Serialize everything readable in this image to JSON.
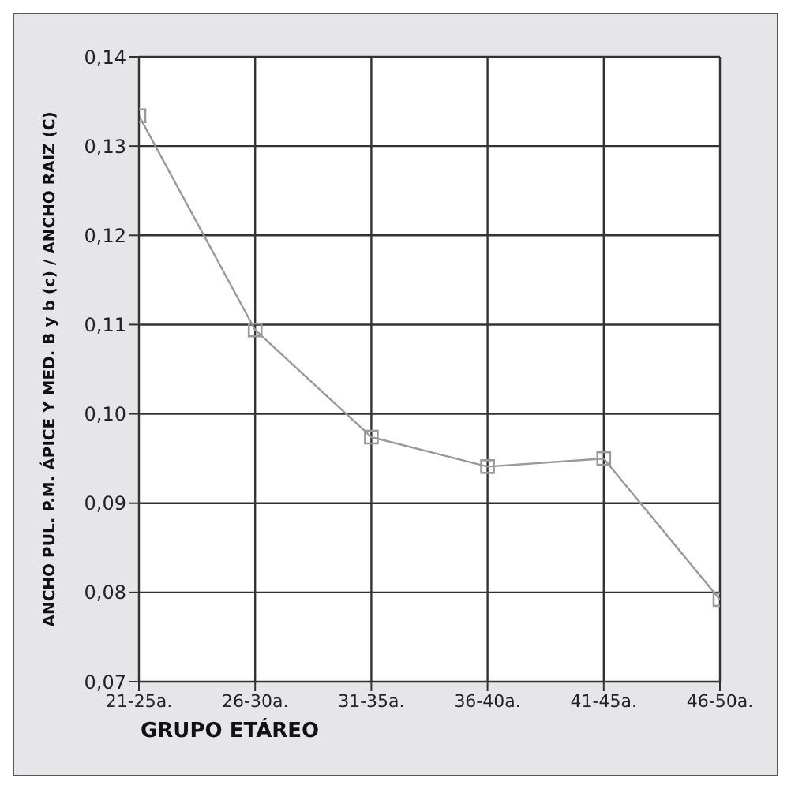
{
  "chart_data": {
    "type": "line",
    "categories": [
      "21-25a.",
      "26-30a.",
      "31-35a.",
      "36-40a.",
      "41-45a.",
      "46-50a."
    ],
    "series": [
      {
        "color": "#999999",
        "values": [
          0.1334,
          0.1094,
          0.0974,
          0.0941,
          0.095,
          0.0792
        ]
      }
    ],
    "ylim": [
      0.07,
      0.14
    ],
    "yticks": [
      {
        "value": 0.07,
        "label": "0,07"
      },
      {
        "value": 0.08,
        "label": "0,08"
      },
      {
        "value": 0.09,
        "label": "0,09"
      },
      {
        "value": 0.1,
        "label": "0,10"
      },
      {
        "value": 0.11,
        "label": "0,11"
      },
      {
        "value": 0.12,
        "label": "0,12"
      },
      {
        "value": 0.13,
        "label": "0,13"
      },
      {
        "value": 0.14,
        "label": "0,14"
      }
    ],
    "xlabel": "GRUPO ETÁREO",
    "ylabel": "ANCHO PUL. P.M. ÁPICE Y MED. B y b (c) /  ANCHO RAIZ (C)",
    "grid": true,
    "marker": "square",
    "line_style": "solid",
    "legend": false
  }
}
